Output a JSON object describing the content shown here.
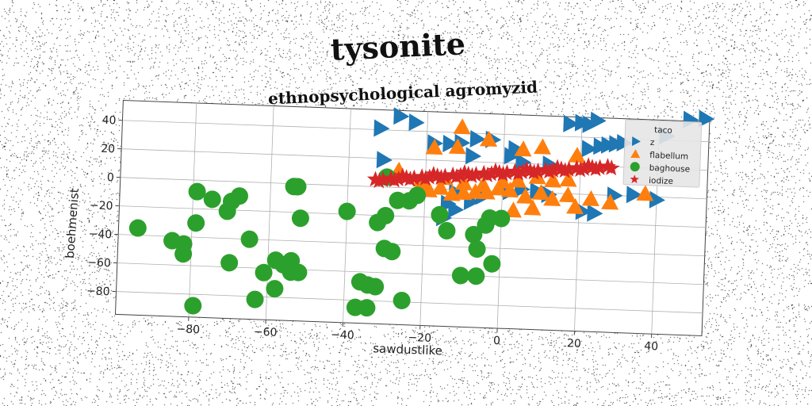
{
  "chart_data": {
    "type": "scatter",
    "title": "tysonite",
    "subtitle": "ethnopsychological agromyzid",
    "xlabel": "sawdustlike",
    "ylabel": "boehmenist",
    "xlim": [
      -99,
      53
    ],
    "ylim": [
      -96,
      54
    ],
    "xticks": [
      -80,
      -60,
      -40,
      -20,
      0,
      20,
      40
    ],
    "yticks": [
      -80,
      -60,
      -40,
      -20,
      0,
      20,
      40
    ],
    "xtick_labels": [
      "−80",
      "−60",
      "−40",
      "−20",
      "0",
      "20",
      "40"
    ],
    "ytick_labels": [
      "−80",
      "−60",
      "−40",
      "−20",
      "0",
      "20",
      "40"
    ],
    "grid": true,
    "legend": {
      "title": "taco",
      "placement": "top-right"
    },
    "series": [
      {
        "name": "z",
        "marker": "triangle-right",
        "color": "#1f77b4",
        "points": [
          [
            -32,
            41
          ],
          [
            -27,
            50
          ],
          [
            -23,
            46
          ],
          [
            -31,
            19
          ],
          [
            -18,
            32
          ],
          [
            -14,
            32
          ],
          [
            -11,
            33
          ],
          [
            -7,
            36
          ],
          [
            -3,
            36
          ],
          [
            3,
            30
          ],
          [
            -8,
            24
          ],
          [
            2,
            25
          ],
          [
            5,
            21
          ],
          [
            12,
            20
          ],
          [
            17,
            49
          ],
          [
            20,
            50
          ],
          [
            22,
            49
          ],
          [
            24,
            52
          ],
          [
            22,
            32
          ],
          [
            25,
            34
          ],
          [
            27,
            35
          ],
          [
            29,
            36
          ],
          [
            31,
            37
          ],
          [
            42,
            43
          ],
          [
            48,
            55
          ],
          [
            52,
            56
          ],
          [
            40,
            -2
          ],
          [
            34,
            1
          ],
          [
            21,
            -12
          ],
          [
            24,
            -13
          ],
          [
            -12,
            -2
          ],
          [
            -14,
            -10
          ],
          [
            -15,
            -20
          ],
          [
            -8,
            -8
          ],
          [
            -5,
            -4
          ],
          [
            2,
            0
          ],
          [
            5,
            2
          ],
          [
            9,
            1
          ],
          [
            12,
            -1
          ],
          [
            29,
            0
          ],
          [
            -12,
            -14
          ]
        ]
      },
      {
        "name": "flabellum",
        "marker": "triangle-up",
        "color": "#ff7f0e",
        "points": [
          [
            -11,
            44
          ],
          [
            -4,
            36
          ],
          [
            -18,
            29
          ],
          [
            -12,
            30
          ],
          [
            5,
            30
          ],
          [
            10,
            32
          ],
          [
            19,
            27
          ],
          [
            -27,
            12
          ],
          [
            -21,
            6
          ],
          [
            -15,
            8
          ],
          [
            -10,
            5
          ],
          [
            -5,
            4
          ],
          [
            0,
            7
          ],
          [
            4,
            8
          ],
          [
            9,
            11
          ],
          [
            13,
            9
          ],
          [
            17,
            10
          ],
          [
            -21,
            2
          ],
          [
            -19,
            -1
          ],
          [
            -16,
            1
          ],
          [
            -13,
            -3
          ],
          [
            -10,
            -2
          ],
          [
            -7,
            -1
          ],
          [
            -4,
            -1
          ],
          [
            -1,
            2
          ],
          [
            2,
            1
          ],
          [
            6,
            -3
          ],
          [
            10,
            0
          ],
          [
            13,
            -4
          ],
          [
            17,
            -1
          ],
          [
            23,
            -3
          ],
          [
            28,
            -5
          ],
          [
            37,
            2
          ],
          [
            3,
            -13
          ],
          [
            8,
            -11
          ],
          [
            19,
            -9
          ]
        ]
      },
      {
        "name": "baghouse",
        "marker": "circle",
        "color": "#2ca02c",
        "points": [
          [
            -94,
            -35
          ],
          [
            -85,
            -43
          ],
          [
            -82,
            -45
          ],
          [
            -82,
            -52
          ],
          [
            -79,
            -8
          ],
          [
            -79,
            -30
          ],
          [
            -79,
            -88
          ],
          [
            -75,
            -13
          ],
          [
            -71,
            -21
          ],
          [
            -70,
            -14
          ],
          [
            -68,
            -10
          ],
          [
            -70,
            -57
          ],
          [
            -65,
            -40
          ],
          [
            -63,
            -82
          ],
          [
            -61,
            -63
          ],
          [
            -58,
            -54
          ],
          [
            -58,
            -74
          ],
          [
            -56,
            -57
          ],
          [
            -54,
            -54
          ],
          [
            -54,
            -62
          ],
          [
            -52,
            -62
          ],
          [
            -52,
            -24
          ],
          [
            -54,
            -2
          ],
          [
            -53,
            -2
          ],
          [
            -40,
            -18
          ],
          [
            -37,
            -85
          ],
          [
            -34,
            -85
          ],
          [
            -36,
            -67
          ],
          [
            -34,
            -69
          ],
          [
            -32,
            -70
          ],
          [
            -32,
            -25
          ],
          [
            -30,
            -20
          ],
          [
            -30,
            -43
          ],
          [
            -28,
            -45
          ],
          [
            -27,
            -9
          ],
          [
            -25,
            -79
          ],
          [
            -24,
            -9
          ],
          [
            -30,
            7
          ],
          [
            -22,
            -5
          ],
          [
            -16,
            -18
          ],
          [
            -14,
            -29
          ],
          [
            -7,
            -31
          ],
          [
            -6,
            -41
          ],
          [
            -4,
            -24
          ],
          [
            -3,
            -19
          ],
          [
            -10,
            -60
          ],
          [
            -6,
            -60
          ],
          [
            -2,
            -51
          ],
          [
            0,
            -19
          ]
        ]
      },
      {
        "name": "iodize",
        "marker": "star",
        "color": "#d62728",
        "points": [
          [
            -33,
            5
          ],
          [
            -31,
            5
          ],
          [
            -29,
            6
          ],
          [
            -27,
            6
          ],
          [
            -25,
            7
          ],
          [
            -23,
            7
          ],
          [
            -21,
            8
          ],
          [
            -19,
            8
          ],
          [
            -17,
            9
          ],
          [
            -15,
            9
          ],
          [
            -13,
            10
          ],
          [
            -11,
            10
          ],
          [
            -9,
            11
          ],
          [
            -7,
            11
          ],
          [
            -5,
            12
          ],
          [
            -3,
            12
          ],
          [
            -1,
            13
          ],
          [
            1,
            13
          ],
          [
            3,
            14
          ],
          [
            5,
            14
          ],
          [
            7,
            15
          ],
          [
            9,
            15
          ],
          [
            11,
            16
          ],
          [
            13,
            16
          ],
          [
            15,
            17
          ],
          [
            17,
            17
          ],
          [
            19,
            18
          ],
          [
            21,
            18
          ],
          [
            23,
            19
          ],
          [
            25,
            19
          ],
          [
            27,
            20
          ],
          [
            -32,
            4
          ],
          [
            -28,
            5
          ],
          [
            -24,
            6
          ],
          [
            -20,
            7
          ],
          [
            -16,
            8
          ],
          [
            -12,
            9
          ],
          [
            -8,
            10
          ],
          [
            -4,
            11
          ],
          [
            0,
            12
          ],
          [
            4,
            13
          ],
          [
            8,
            14
          ],
          [
            12,
            15
          ],
          [
            16,
            16
          ],
          [
            20,
            17
          ],
          [
            24,
            18
          ],
          [
            28,
            19
          ],
          [
            -26,
            8
          ],
          [
            -18,
            10
          ],
          [
            -10,
            12
          ],
          [
            -2,
            14
          ],
          [
            6,
            16
          ],
          [
            14,
            18
          ],
          [
            22,
            20
          ]
        ]
      }
    ]
  }
}
